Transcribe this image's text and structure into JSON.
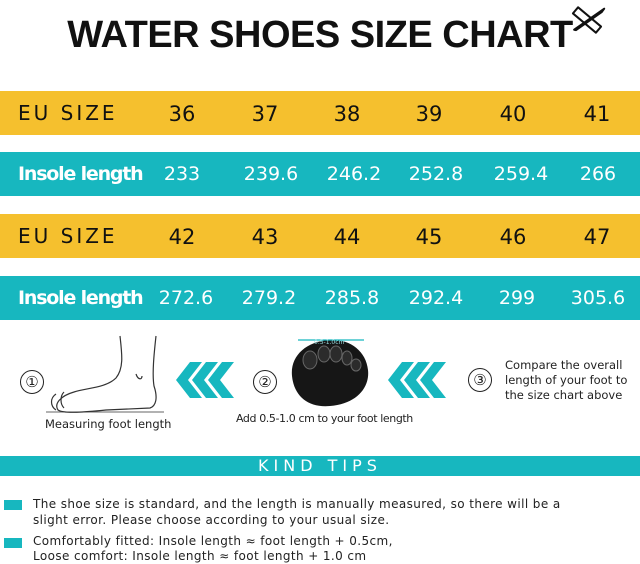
{
  "title": "WATER SHOES SIZE CHART",
  "icons": {
    "ruler_pencil": "ruler-pencil-icon",
    "chevrons": "double-chevron-left-icon"
  },
  "colors": {
    "yellow": "#f5c02e",
    "teal": "#17b7bf"
  },
  "rows": [
    {
      "label": "EU SIZE",
      "values": [
        "36",
        "37",
        "38",
        "39",
        "40",
        "41"
      ]
    },
    {
      "label": "Insole length",
      "values": [
        "233",
        "239.6",
        "246.2",
        "252.8",
        "259.4",
        "266"
      ]
    },
    {
      "label": "EU SIZE",
      "values": [
        "42",
        "43",
        "44",
        "45",
        "46",
        "47"
      ]
    },
    {
      "label": "Insole length",
      "values": [
        "272.6",
        "279.2",
        "285.8",
        "292.4",
        "299",
        "305.6"
      ]
    }
  ],
  "steps": {
    "step1": {
      "number": "①",
      "caption": "Measuring foot length"
    },
    "step2": {
      "number": "②",
      "caption": "Add 0.5-1.0 cm to your foot length",
      "image_label": "0.5-1.0cm"
    },
    "step3": {
      "number": "③",
      "lines": [
        "Compare the overall",
        "length of your foot to",
        "the size chart above"
      ]
    }
  },
  "tips": {
    "heading": "KIND TIPS",
    "items": [
      [
        "The shoe size is standard, and the length is manually measured, so there will be a",
        "slight error. Please choose according to your usual size."
      ],
      [
        "Comfortably fitted: Insole length ≈ foot length + 0.5cm,",
        "Loose comfort: Insole length ≈ foot length + 1.0 cm"
      ]
    ]
  }
}
